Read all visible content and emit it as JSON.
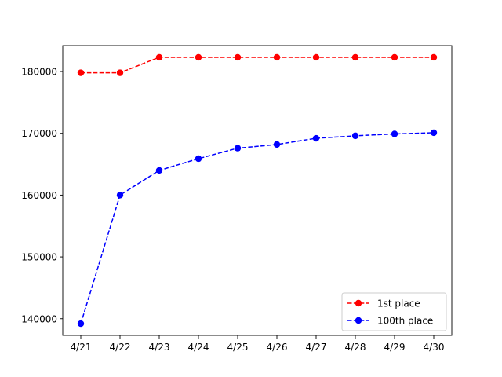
{
  "chart_data": {
    "type": "line",
    "title": "",
    "xlabel": "",
    "ylabel": "",
    "categories": [
      "4/21",
      "4/22",
      "4/23",
      "4/24",
      "4/25",
      "4/26",
      "4/27",
      "4/28",
      "4/29",
      "4/30"
    ],
    "ylim": [
      137300,
      184200
    ],
    "yticks": [
      140000,
      150000,
      160000,
      170000,
      180000
    ],
    "ytick_labels": [
      "140000",
      "150000",
      "160000",
      "170000",
      "180000"
    ],
    "grid": false,
    "legend_position": "lower-right",
    "series": [
      {
        "name": "1st place",
        "color": "#ff0000",
        "line_style": "dashed",
        "marker": "circle",
        "values": [
          179800,
          179800,
          182300,
          182300,
          182300,
          182300,
          182300,
          182300,
          182300,
          182300
        ]
      },
      {
        "name": "100th place",
        "color": "#0000ff",
        "line_style": "dashed",
        "marker": "circle",
        "values": [
          139200,
          160000,
          164000,
          165900,
          167600,
          168200,
          169200,
          169600,
          169900,
          170100
        ]
      }
    ]
  }
}
